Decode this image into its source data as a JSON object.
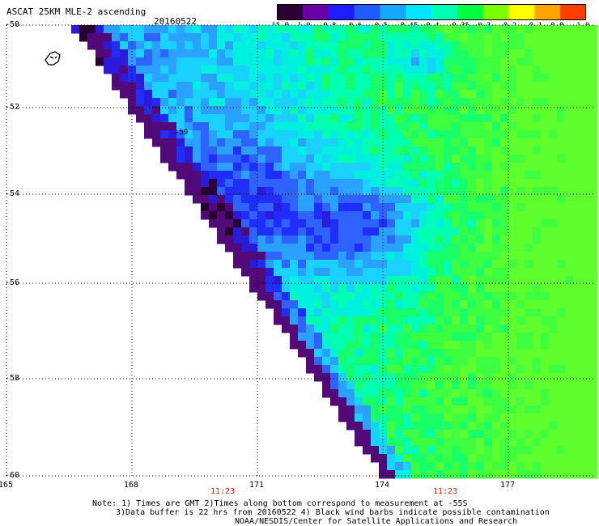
{
  "header": {
    "title": "ASCAT 25KM MLE-2 ascending",
    "date": "20160522"
  },
  "colorbar": {
    "labels": [
      "-15.0",
      "-1.0",
      "-0.8",
      "-0.6",
      "-0.5",
      "-0.45",
      "-0.4",
      "-0.35",
      "-0.3",
      "-0.2",
      "-0.1",
      "0.0",
      "1.0"
    ],
    "colors": [
      "#2a0033",
      "#6a00a8",
      "#1d1dff",
      "#1f5cff",
      "#15a8ff",
      "#00e5ff",
      "#00ffb0",
      "#00ff40",
      "#7dff00",
      "#ffff00",
      "#ffa500",
      "#ff4000",
      "#ff0000"
    ]
  },
  "axes": {
    "lat_labels": [
      "-50",
      "-52",
      "-54",
      "-56",
      "-58",
      "-60"
    ],
    "lon_labels": [
      "165",
      "168",
      "171",
      "174",
      "177"
    ],
    "time_labels": [
      "11:23",
      "11:23"
    ]
  },
  "grid_marker": "-59",
  "notes": {
    "line1": "Note: 1) Times are GMT 2)Times along bottom correspond to measurement at -55S",
    "line2": "3)Data buffer is 22 hrs from 20160522 4) Black wind barbs indicate possible contamination",
    "line3": "NOAA/NESDIS/Center for Satellite Applications and Research"
  }
}
